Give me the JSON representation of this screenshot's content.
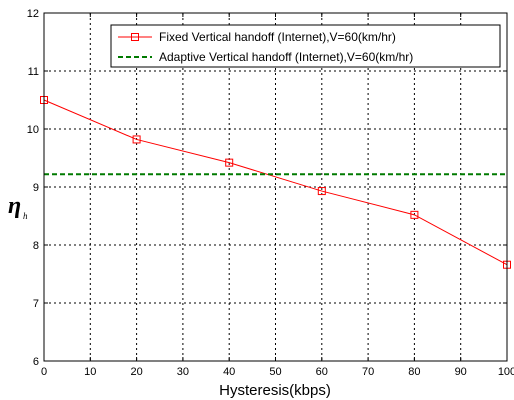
{
  "chart_data": {
    "type": "line",
    "title": "",
    "xlabel": "Hysteresis(kbps)",
    "ylabel": "η",
    "ylabel_subscript": "h",
    "xlim": [
      0,
      100
    ],
    "ylim": [
      6,
      12
    ],
    "xticks": [
      0,
      10,
      20,
      30,
      40,
      50,
      60,
      70,
      80,
      90,
      100
    ],
    "yticks": [
      6,
      7,
      8,
      9,
      10,
      11,
      12
    ],
    "grid": true,
    "legend_position": "top-right",
    "series": [
      {
        "name": "Fixed Vertical handoff (Internet),V=60(km/hr)",
        "color": "#ff0000",
        "style": "solid",
        "marker": "square",
        "x": [
          0,
          20,
          40,
          60,
          80,
          100
        ],
        "y": [
          10.5,
          9.82,
          9.42,
          8.93,
          8.52,
          7.66
        ]
      },
      {
        "name": "Adaptive Vertical handoff (Internet),V=60(km/hr)",
        "color": "#007a00",
        "style": "dashed",
        "marker": "none",
        "x": [
          0,
          100
        ],
        "y": [
          9.22,
          9.22
        ]
      }
    ]
  }
}
